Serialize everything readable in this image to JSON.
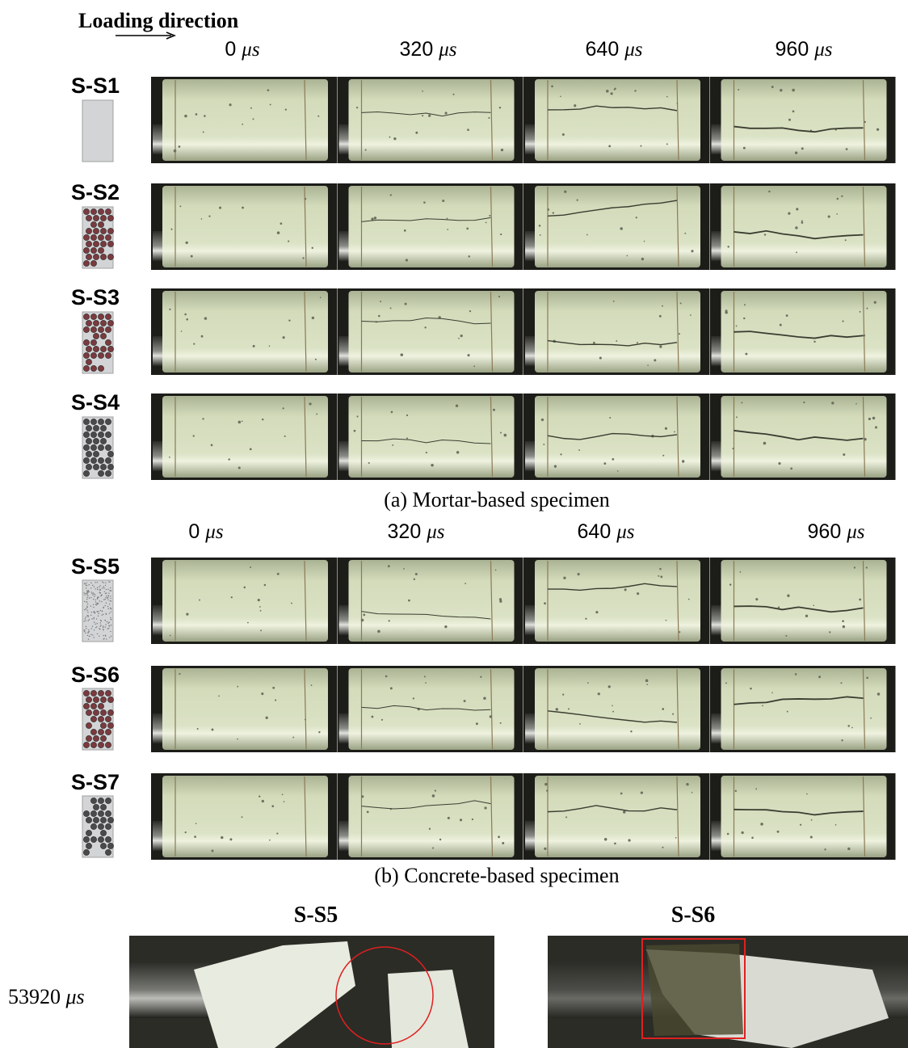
{
  "header": {
    "loading_direction": "Loading direction"
  },
  "panel_a": {
    "times": [
      {
        "number": "0",
        "unit": "μs"
      },
      {
        "number": "320",
        "unit": "μs"
      },
      {
        "number": "640",
        "unit": "μs"
      },
      {
        "number": "960",
        "unit": "μs"
      }
    ],
    "rows": [
      "S-S1",
      "S-S2",
      "S-S3",
      "S-S4"
    ],
    "caption": "(a) Mortar-based specimen"
  },
  "panel_b": {
    "times": [
      {
        "number": "0",
        "unit": "μs"
      },
      {
        "number": "320",
        "unit": "μs"
      },
      {
        "number": "640",
        "unit": "μs"
      },
      {
        "number": "960",
        "unit": "μs"
      }
    ],
    "rows": [
      "S-S5",
      "S-S6",
      "S-S7"
    ],
    "caption": "(b) Concrete-based specimen"
  },
  "panel_c": {
    "time": {
      "number": "53920",
      "unit": "μs"
    },
    "columns": [
      "S-S5",
      "S-S6"
    ]
  }
}
